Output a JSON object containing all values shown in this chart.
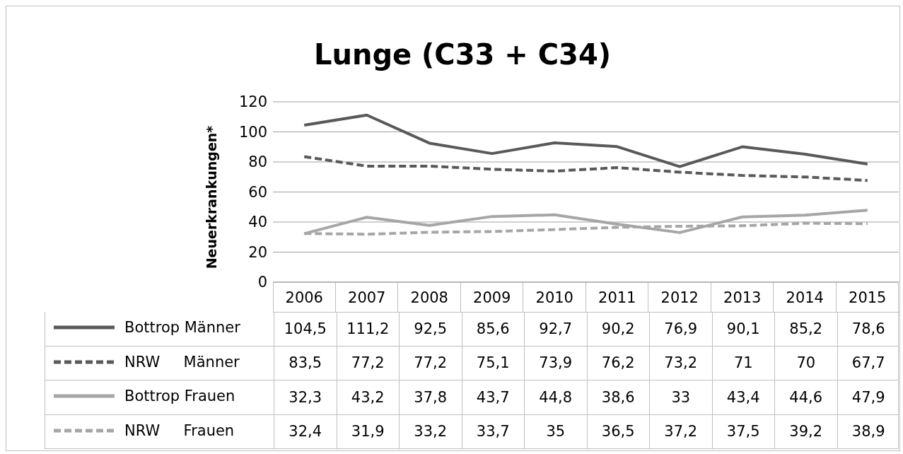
{
  "chart_data": {
    "type": "line",
    "title": "Lunge (C33 + C34)",
    "ylabel": "Neuerkrankungen*",
    "categories": [
      "2006",
      "2007",
      "2008",
      "2009",
      "2010",
      "2011",
      "2012",
      "2013",
      "2014",
      "2015"
    ],
    "series": [
      {
        "name": "Bottrop Männer",
        "color": "#595959",
        "line_style": "solid",
        "values": [
          104.5,
          111.2,
          92.5,
          85.6,
          92.7,
          90.2,
          76.9,
          90.1,
          85.2,
          78.6
        ],
        "value_labels": [
          "104,5",
          "111,2",
          "92,5",
          "85,6",
          "92,7",
          "90,2",
          "76,9",
          "90,1",
          "85,2",
          "78,6"
        ]
      },
      {
        "name": "NRW     Männer",
        "color": "#595959",
        "line_style": "dashed",
        "values": [
          83.5,
          77.2,
          77.2,
          75.1,
          73.9,
          76.2,
          73.2,
          71,
          70,
          67.7
        ],
        "value_labels": [
          "83,5",
          "77,2",
          "77,2",
          "75,1",
          "73,9",
          "76,2",
          "73,2",
          "71",
          "70",
          "67,7"
        ]
      },
      {
        "name": "Bottrop Frauen",
        "color": "#a6a6a6",
        "line_style": "solid",
        "values": [
          32.3,
          43.2,
          37.8,
          43.7,
          44.8,
          38.6,
          33,
          43.4,
          44.6,
          47.9
        ],
        "value_labels": [
          "32,3",
          "43,2",
          "37,8",
          "43,7",
          "44,8",
          "38,6",
          "33",
          "43,4",
          "44,6",
          "47,9"
        ]
      },
      {
        "name": "NRW     Frauen",
        "color": "#a6a6a6",
        "line_style": "dashed",
        "values": [
          32.4,
          31.9,
          33.2,
          33.7,
          35,
          36.5,
          37.2,
          37.5,
          39.2,
          38.9
        ],
        "value_labels": [
          "32,4",
          "31,9",
          "33,2",
          "33,7",
          "35",
          "36,5",
          "37,2",
          "37,5",
          "39,2",
          "38,9"
        ]
      }
    ],
    "ylim": [
      0,
      120
    ],
    "yticks": [
      0,
      20,
      40,
      60,
      80,
      100,
      120
    ],
    "grid": "y",
    "legend": "bottom",
    "marker": "none"
  }
}
